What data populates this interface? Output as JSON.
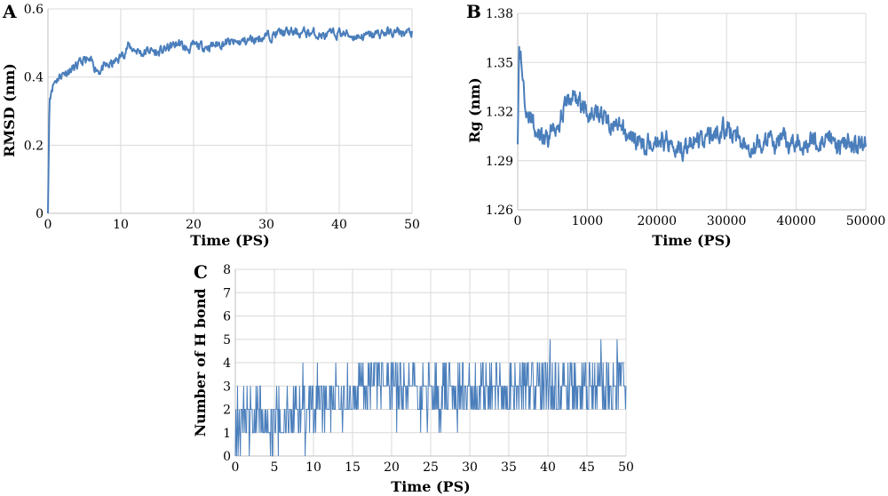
{
  "chart_data": [
    {
      "panel": "A",
      "type": "line",
      "xlabel": "Time (PS)",
      "ylabel": "RMSD (nm)",
      "xlim": [
        0,
        50
      ],
      "ylim": [
        0,
        0.6
      ],
      "xticks": [
        "0",
        "10",
        "20",
        "30",
        "40",
        "50"
      ],
      "yticks": [
        "0",
        "0.2",
        "0.4",
        "0.6"
      ],
      "grid": true,
      "color": "#4a7ebb",
      "x": [
        0,
        0.2,
        0.5,
        1,
        2,
        3,
        4,
        5,
        6,
        7,
        8,
        9,
        10,
        11,
        12,
        13,
        14,
        15,
        16,
        17,
        18,
        19,
        20,
        22,
        24,
        26,
        28,
        30,
        32,
        34,
        36,
        38,
        40,
        42,
        44,
        46,
        48,
        50
      ],
      "y": [
        0,
        0.33,
        0.37,
        0.39,
        0.41,
        0.42,
        0.43,
        0.45,
        0.44,
        0.42,
        0.43,
        0.44,
        0.46,
        0.49,
        0.48,
        0.47,
        0.48,
        0.47,
        0.48,
        0.49,
        0.5,
        0.48,
        0.49,
        0.49,
        0.5,
        0.5,
        0.51,
        0.52,
        0.53,
        0.53,
        0.53,
        0.52,
        0.53,
        0.52,
        0.52,
        0.53,
        0.53,
        0.53
      ]
    },
    {
      "panel": "B",
      "type": "line",
      "xlabel": "Time (PS)",
      "ylabel": "Rg (nm)",
      "xlim": [
        0,
        50000
      ],
      "ylim": [
        1.26,
        1.38
      ],
      "xticks": [
        "0",
        "1000",
        "20000",
        "30000",
        "40000",
        "50000"
      ],
      "yticks": [
        "1.26",
        "1.29",
        "1.32",
        "1.35",
        "1.38"
      ],
      "grid": true,
      "color": "#4a7ebb",
      "x": [
        0,
        200,
        500,
        1000,
        1500,
        2000,
        3000,
        4000,
        5000,
        6000,
        7000,
        8000,
        9000,
        10000,
        11000,
        12000,
        14000,
        16000,
        18000,
        20000,
        22000,
        24000,
        26000,
        28000,
        30000,
        32000,
        34000,
        36000,
        38000,
        40000,
        42000,
        44000,
        46000,
        48000,
        50000
      ],
      "y": [
        1.3,
        1.36,
        1.35,
        1.33,
        1.32,
        1.315,
        1.305,
        1.3,
        1.31,
        1.315,
        1.325,
        1.33,
        1.325,
        1.32,
        1.32,
        1.318,
        1.31,
        1.305,
        1.3,
        1.303,
        1.302,
        1.298,
        1.303,
        1.305,
        1.31,
        1.302,
        1.3,
        1.301,
        1.302,
        1.301,
        1.302,
        1.3,
        1.301,
        1.3,
        1.3
      ]
    },
    {
      "panel": "C",
      "type": "line",
      "xlabel": "Time (PS)",
      "ylabel": "Number of H bond",
      "xlim": [
        0,
        50
      ],
      "ylim": [
        0,
        8
      ],
      "xticks": [
        "0",
        "5",
        "10",
        "15",
        "20",
        "25",
        "30",
        "35",
        "40",
        "45",
        "50"
      ],
      "yticks": [
        "0",
        "1",
        "2",
        "3",
        "4",
        "5",
        "6",
        "7",
        "8"
      ],
      "grid": true,
      "color": "#4a7ebb",
      "x": [
        0,
        2.5,
        5,
        7.5,
        10,
        12.5,
        15,
        17.5,
        20,
        22.5,
        25,
        27.5,
        30,
        32.5,
        35,
        37.5,
        40,
        42.5,
        45,
        47.5,
        50
      ],
      "y": [
        1.5,
        1.5,
        1.5,
        1.8,
        2.2,
        2.5,
        2.7,
        3,
        2.8,
        2.8,
        2.7,
        2.6,
        2.8,
        2.9,
        3,
        3.2,
        3.1,
        3.1,
        3,
        3,
        3
      ]
    }
  ]
}
